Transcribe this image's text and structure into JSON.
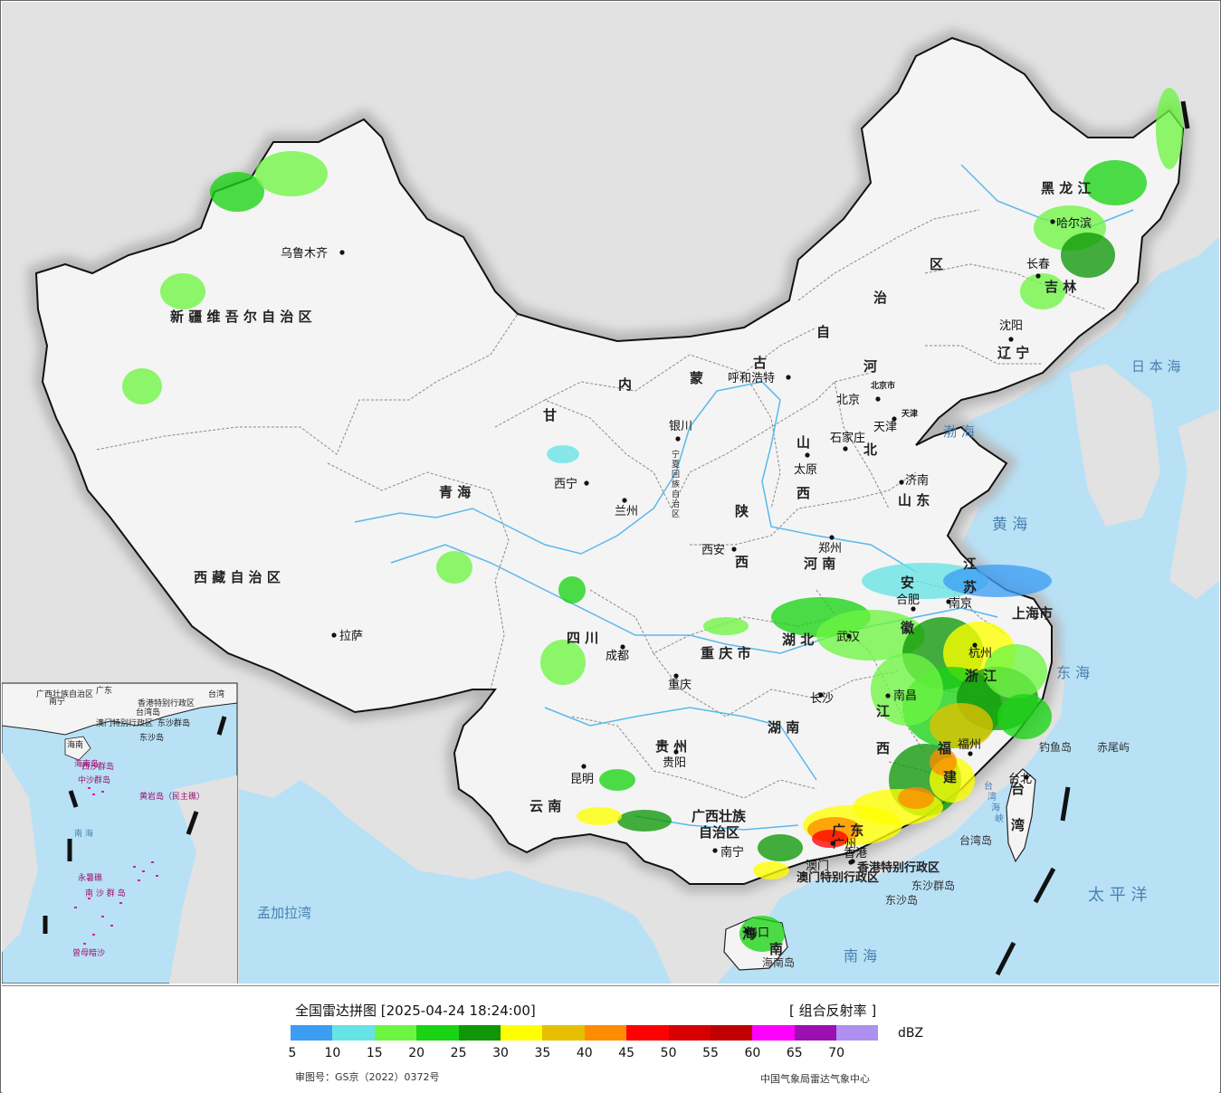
{
  "legend": {
    "title": "全国雷达拼图 [2025-04-24 18:24:00]",
    "product": "[ 组合反射率 ]",
    "unit": "dBZ",
    "scale": [
      {
        "color": "#3d9df3"
      },
      {
        "color": "#66e3e6"
      },
      {
        "color": "#6ef542"
      },
      {
        "color": "#1ad414"
      },
      {
        "color": "#0f9708"
      },
      {
        "color": "#ffff00"
      },
      {
        "color": "#e6c000"
      },
      {
        "color": "#ff8c00"
      },
      {
        "color": "#ff0000"
      },
      {
        "color": "#d60000"
      },
      {
        "color": "#c00000"
      },
      {
        "color": "#ff00ff"
      },
      {
        "color": "#9b0fb3"
      },
      {
        "color": "#ad90f0"
      }
    ],
    "ticks": [
      "5",
      "10",
      "15",
      "20",
      "25",
      "30",
      "35",
      "40",
      "45",
      "50",
      "55",
      "60",
      "65",
      "70"
    ],
    "approval": "审图号：GS京（2022）0372号",
    "source": "中国气象局雷达气象中心"
  },
  "colors": {
    "sea": "#b8e1f6",
    "land_foreign": "#e2e2e2",
    "land_china": "#f4f4f4",
    "border": "#000000",
    "river": "#5ab8ec"
  },
  "regions": [
    {
      "id": "xinjiang",
      "label": "新 疆 维 吾 尔 自 治 区"
    },
    {
      "id": "xizang",
      "label": "西 藏 自 治 区"
    },
    {
      "id": "qinghai",
      "label": "青            海"
    },
    {
      "id": "gansu",
      "label": "甘"
    },
    {
      "id": "neimenggu1",
      "label": "内"
    },
    {
      "id": "neimenggu2",
      "label": "蒙"
    },
    {
      "id": "neimenggu3",
      "label": "古"
    },
    {
      "id": "neimenggu4",
      "label": "自"
    },
    {
      "id": "neimenggu5",
      "label": "治"
    },
    {
      "id": "neimenggu6",
      "label": "区"
    },
    {
      "id": "heilongjiang",
      "label": "黑    龙    江"
    },
    {
      "id": "jilin",
      "label": "吉    林"
    },
    {
      "id": "liaoning",
      "label": "辽    宁"
    },
    {
      "id": "hebei1",
      "label": "河"
    },
    {
      "id": "hebei2",
      "label": "北"
    },
    {
      "id": "shanxi1",
      "label": "山"
    },
    {
      "id": "shanxi2",
      "label": "西"
    },
    {
      "id": "shaanxi1",
      "label": "陕"
    },
    {
      "id": "shaanxi2",
      "label": "西"
    },
    {
      "id": "shandong",
      "label": "山    东"
    },
    {
      "id": "henan",
      "label": "河    南"
    },
    {
      "id": "jiangsu1",
      "label": "江"
    },
    {
      "id": "jiangsu2",
      "label": "苏"
    },
    {
      "id": "anhui1",
      "label": "安"
    },
    {
      "id": "anhui2",
      "label": "徽"
    },
    {
      "id": "hubei",
      "label": "湖    北"
    },
    {
      "id": "hunan",
      "label": "湖    南"
    },
    {
      "id": "jiangxi1",
      "label": "江"
    },
    {
      "id": "jiangxi2",
      "label": "西"
    },
    {
      "id": "zhejiang",
      "label": "浙  江"
    },
    {
      "id": "fujian1",
      "label": "福"
    },
    {
      "id": "fujian2",
      "label": "建"
    },
    {
      "id": "sichuan",
      "label": "四      川"
    },
    {
      "id": "chongqing",
      "label": "重 庆 市"
    },
    {
      "id": "guizhou",
      "label": "贵      州"
    },
    {
      "id": "yunnan",
      "label": "云      南"
    },
    {
      "id": "guangxi1",
      "label": "广西壮族"
    },
    {
      "id": "guangxi2",
      "label": "自治区"
    },
    {
      "id": "guangdong",
      "label": "广  东"
    },
    {
      "id": "hainan1",
      "label": "海"
    },
    {
      "id": "hainan2",
      "label": "南"
    },
    {
      "id": "taiwan1",
      "label": "台"
    },
    {
      "id": "taiwan2",
      "label": "湾"
    },
    {
      "id": "shanghai",
      "label": "上海市"
    },
    {
      "id": "ningxia",
      "label": "宁夏回族自治区"
    },
    {
      "id": "beijing_region",
      "label": "北京市"
    },
    {
      "id": "tianjin_region",
      "label": "天津"
    },
    {
      "id": "hk",
      "label": "香港特别行政区"
    },
    {
      "id": "macao",
      "label": "澳门特别行政区"
    }
  ],
  "cities": [
    {
      "name": "乌鲁木齐"
    },
    {
      "name": "拉萨"
    },
    {
      "name": "西宁"
    },
    {
      "name": "兰州"
    },
    {
      "name": "银川"
    },
    {
      "name": "呼和浩特"
    },
    {
      "name": "北京"
    },
    {
      "name": "天津"
    },
    {
      "name": "石家庄"
    },
    {
      "name": "太原"
    },
    {
      "name": "济南"
    },
    {
      "name": "郑州"
    },
    {
      "name": "西安"
    },
    {
      "name": "成都"
    },
    {
      "name": "重庆"
    },
    {
      "name": "贵阳"
    },
    {
      "name": "昆明"
    },
    {
      "name": "南宁"
    },
    {
      "name": "广州"
    },
    {
      "name": "长沙"
    },
    {
      "name": "武汉"
    },
    {
      "name": "南昌"
    },
    {
      "name": "合肥"
    },
    {
      "name": "南京"
    },
    {
      "name": "杭州"
    },
    {
      "name": "福州"
    },
    {
      "name": "哈尔滨"
    },
    {
      "name": "长春"
    },
    {
      "name": "沈阳"
    },
    {
      "name": "台北"
    },
    {
      "name": "海口"
    },
    {
      "name": "香港"
    },
    {
      "name": "澳门"
    }
  ],
  "seas": [
    {
      "id": "huanghai",
      "label": "黄    海"
    },
    {
      "id": "bohai",
      "label": "渤 海"
    },
    {
      "id": "donghai",
      "label": "东  海"
    },
    {
      "id": "nanhai",
      "label": "南        海"
    },
    {
      "id": "riben",
      "label": "日 本 海"
    },
    {
      "id": "taipingyang",
      "label": "太    平    洋"
    },
    {
      "id": "mengjiala",
      "label": "孟加拉湾"
    },
    {
      "id": "taiwan_strait",
      "label": "台 湾 海 峡"
    }
  ],
  "islands": [
    {
      "id": "diaoyu",
      "label": "钓鱼岛"
    },
    {
      "id": "chiwei",
      "label": "赤尾屿"
    },
    {
      "id": "taiwan_island",
      "label": "台湾岛"
    },
    {
      "id": "dongsha_qundao",
      "label": "东沙群岛"
    },
    {
      "id": "dongsha_dao",
      "label": "东沙岛"
    },
    {
      "id": "hainan_island",
      "label": "海南岛"
    }
  ],
  "inset": {
    "labels": [
      "广西壮族自治区",
      "南宁",
      "广东",
      "台湾",
      "香港特别行政区",
      "澳门特别行政区",
      "东沙群岛",
      "台湾岛",
      "东沙岛",
      "海南",
      "海南岛",
      "西沙群岛",
      "中沙群岛",
      "黄岩岛（民主礁）",
      "南     海",
      "永暑礁",
      "南 沙 群 岛",
      "曾母暗沙"
    ]
  }
}
